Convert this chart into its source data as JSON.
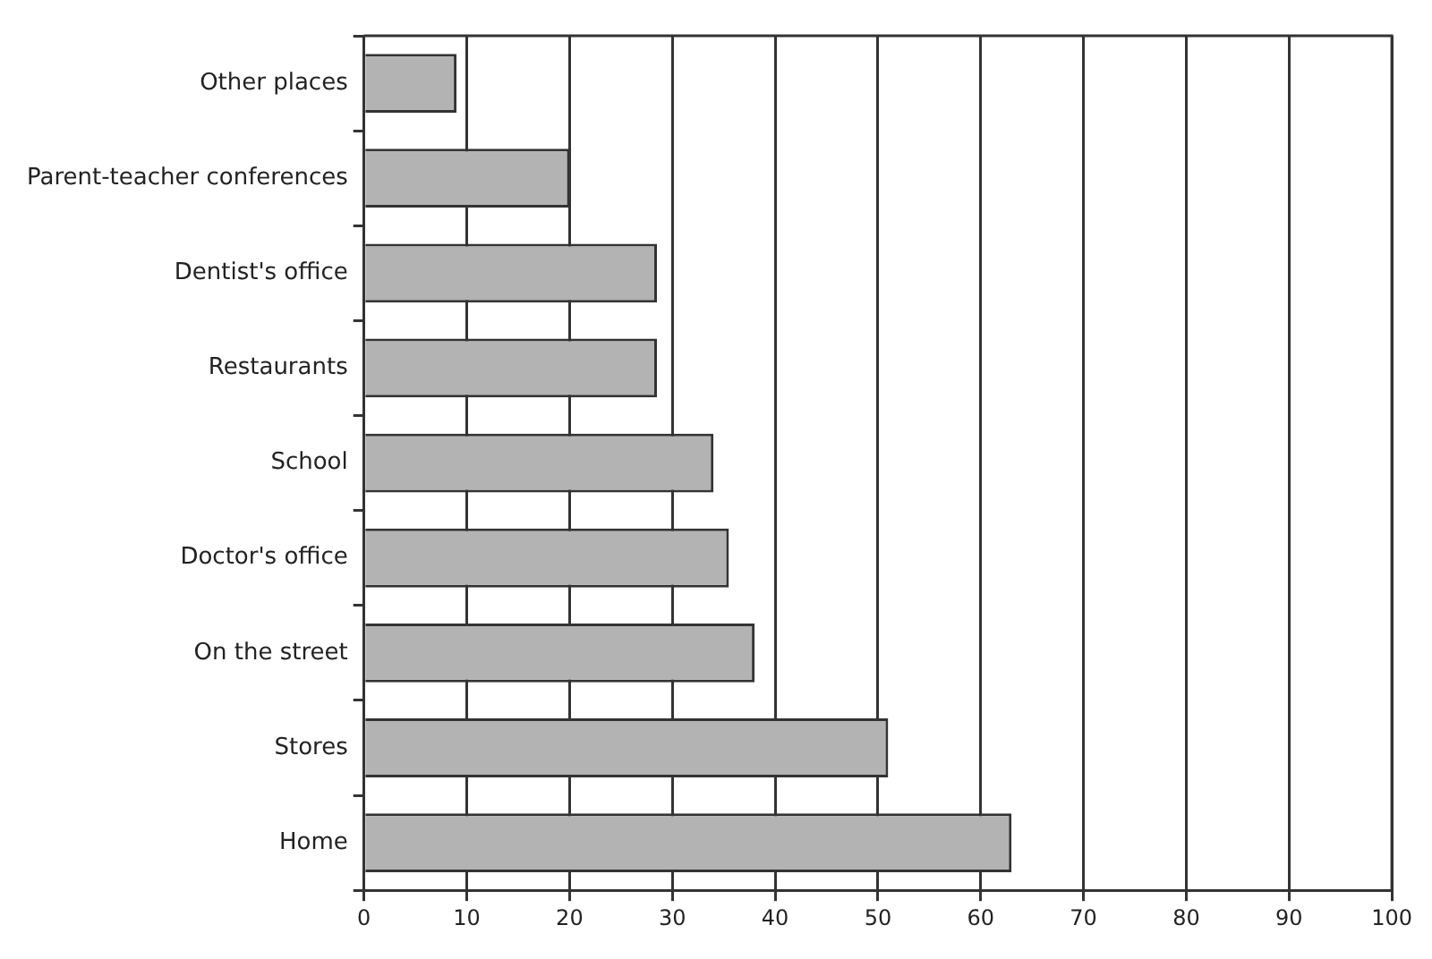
{
  "chart_data": {
    "type": "bar",
    "orientation": "horizontal",
    "categories": [
      "Other places",
      "Parent-teacher conferences",
      "Dentist's office",
      "Restaurants",
      "School",
      "Doctor's office",
      "On the street",
      "Stores",
      "Home"
    ],
    "values": [
      9,
      20,
      28.5,
      28.5,
      34,
      35.5,
      38,
      51,
      63
    ],
    "color": "#b3b3b3",
    "xlim": [
      0,
      100
    ],
    "xticks": [
      0,
      10,
      20,
      30,
      40,
      50,
      60,
      70,
      80,
      90,
      100
    ],
    "grid": "x",
    "legend": false
  }
}
